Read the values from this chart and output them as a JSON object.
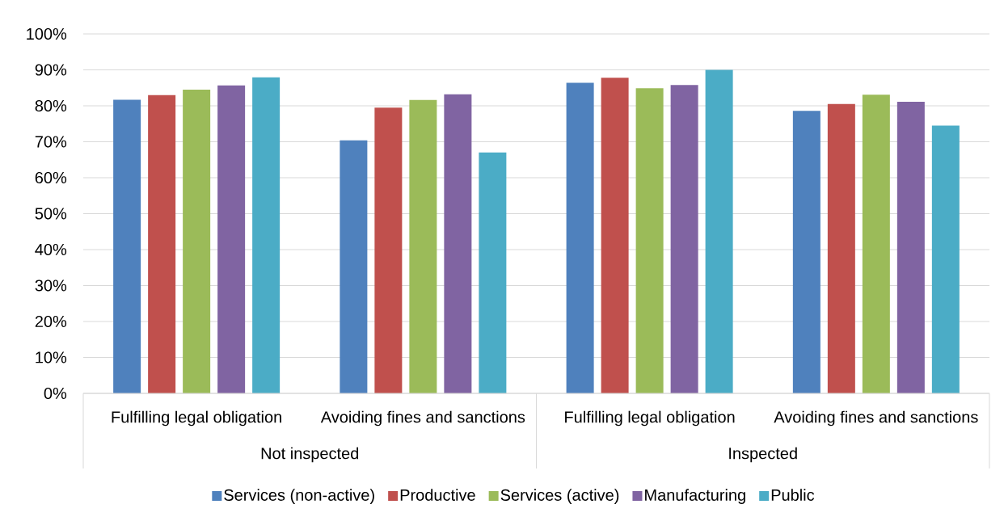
{
  "chart_data": {
    "type": "bar",
    "categories": [
      "Fulfilling legal obligation",
      "Avoiding fines and sanctions",
      "Fulfilling legal obligation",
      "Avoiding fines and sanctions"
    ],
    "series": [
      {
        "name": "Services (non-active)",
        "color": "#4f81bd",
        "values": [
          81.7,
          70.4,
          86.4,
          78.6
        ]
      },
      {
        "name": "Productive",
        "color": "#c0504d",
        "values": [
          83.0,
          79.5,
          87.8,
          80.5
        ]
      },
      {
        "name": "Services (active)",
        "color": "#9bbb59",
        "values": [
          84.5,
          81.6,
          84.9,
          83.1
        ]
      },
      {
        "name": "Manufacturing",
        "color": "#8064a2",
        "values": [
          85.7,
          83.2,
          85.8,
          81.1
        ]
      },
      {
        "name": "Public",
        "color": "#4bacc6",
        "values": [
          87.9,
          67.0,
          90.0,
          74.5
        ]
      }
    ],
    "ylim": [
      0,
      100
    ],
    "yticks": [
      {
        "value": 0,
        "label": "0%"
      },
      {
        "value": 10,
        "label": "10%"
      },
      {
        "value": 20,
        "label": "20%"
      },
      {
        "value": 30,
        "label": "30%"
      },
      {
        "value": 40,
        "label": "40%"
      },
      {
        "value": 50,
        "label": "50%"
      },
      {
        "value": 60,
        "label": "60%"
      },
      {
        "value": 70,
        "label": "70%"
      },
      {
        "value": 80,
        "label": "80%"
      },
      {
        "value": 90,
        "label": "90%"
      },
      {
        "value": 100,
        "label": "100%"
      }
    ],
    "grid": "y",
    "legend": "bottom",
    "annotations": [
      "Not inspected",
      "Inspected"
    ]
  }
}
